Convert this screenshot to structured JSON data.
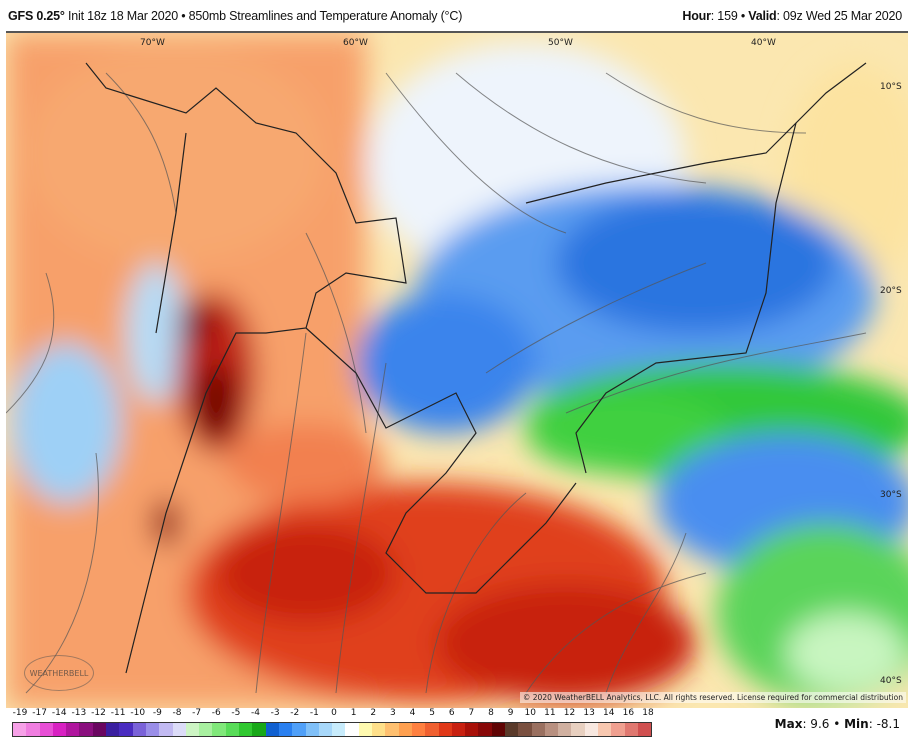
{
  "header": {
    "model": "GFS 0.25",
    "model_deg": "°",
    "init": " Init 18z 18 Mar 2020 • 850mb Streamlines and Temperature Anomaly (°C)",
    "hour_label": "Hour",
    "hour": ": 159 • ",
    "valid_label": "Valid",
    "valid": ": 09z Wed 25 Mar 2020"
  },
  "map": {
    "lon_labels": [
      "70°W",
      "60°W",
      "50°W",
      "40°W"
    ],
    "lat_labels": [
      "10°S",
      "20°S",
      "30°S",
      "40°S"
    ],
    "copyright": "© 2020 WeatherBELL Analytics, LLC. All rights reserved. License required for commercial distribution",
    "logo": "WEATHERBELL"
  },
  "colorbar": {
    "labels": [
      "-19",
      "-17",
      "-14",
      "-13",
      "-12",
      "-11",
      "-10",
      "-9",
      "-8",
      "-7",
      "-6",
      "-5",
      "-4",
      "-3",
      "-2",
      "-1",
      "0",
      "1",
      "2",
      "3",
      "4",
      "5",
      "6",
      "7",
      "8",
      "9",
      "10",
      "11",
      "12",
      "13",
      "14",
      "16",
      "18"
    ],
    "colors": [
      "#f7a1e8",
      "#f07ee0",
      "#e84fd6",
      "#d821c2",
      "#b0159e",
      "#8a0f7e",
      "#6a0660",
      "#3a1fa0",
      "#4a2cc0",
      "#7a62d8",
      "#9a8ee8",
      "#c2baf2",
      "#dcdcf8",
      "#cdf5c4",
      "#a8f0a0",
      "#80e87a",
      "#58dc58",
      "#30c830",
      "#18a818",
      "#1060d0",
      "#2a80f0",
      "#50a0f8",
      "#80c0f8",
      "#a8d8fa",
      "#c8ecfc",
      "#ffffff",
      "#fffab0",
      "#ffe08a",
      "#ffc070",
      "#ffa050",
      "#ff8040",
      "#f06030",
      "#e03818",
      "#c82010",
      "#a81008",
      "#880808",
      "#600404",
      "#5a3a2a",
      "#7a5040",
      "#9a7060",
      "#b89080",
      "#d0b0a0",
      "#e8d0c0",
      "#f8e8e0",
      "#f8c8b0",
      "#f0a090",
      "#e07870",
      "#d05050"
    ]
  },
  "stats": {
    "max_label": "Max",
    "max": ": 9.6 • ",
    "min_label": "Min",
    "min": ": -8.1"
  }
}
